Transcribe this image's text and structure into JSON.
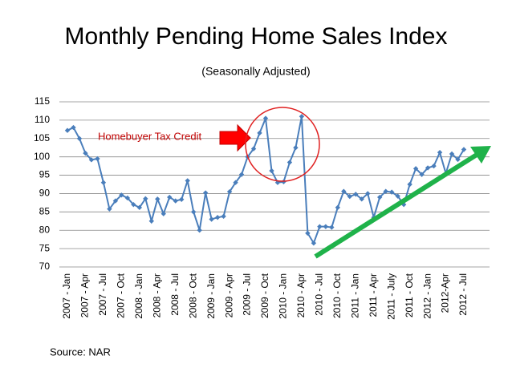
{
  "chart_data": {
    "type": "line",
    "title": "Monthly Pending Home Sales Index",
    "subtitle": "(Seasonally Adjusted)",
    "annotations": [
      "Homebuyer Tax Credit"
    ],
    "source": "Source: NAR",
    "categories": [
      "2007 - Jan",
      null,
      null,
      "2007 - Apr",
      null,
      null,
      "2007 - Jul",
      null,
      null,
      "2007 - Oct",
      null,
      null,
      "2008 - Jan",
      null,
      null,
      "2008 - Apr",
      null,
      null,
      "2008 - Jul",
      null,
      null,
      "2008 - Oct",
      null,
      null,
      "2009 - Jan",
      null,
      null,
      "2009 - Apr",
      null,
      null,
      "2009 - Jul",
      null,
      null,
      "2009 - Oct",
      null,
      null,
      "2010 - Jan",
      null,
      null,
      "2010 - Apr",
      null,
      null,
      "2010 - Jul",
      null,
      null,
      "2010 - Oct",
      null,
      null,
      "2011 - Jan",
      null,
      null,
      "2011 - Apr",
      null,
      null,
      "2011 - July",
      null,
      null,
      "2011 - Oct",
      null,
      null,
      "2012 - Jan",
      null,
      null,
      "2012-Apr",
      null,
      null,
      "2012 - Jul"
    ],
    "series": [
      {
        "name": "Pending Home Sales Index",
        "color": "#4a7ebb",
        "values": [
          107.2,
          108,
          105,
          101,
          99.2,
          99.5,
          93,
          85.8,
          88,
          89.6,
          88.8,
          87,
          86.2,
          88.6,
          82.5,
          88.5,
          84.5,
          89,
          88,
          88.4,
          93.5,
          85,
          80,
          90.2,
          83,
          83.5,
          83.8,
          90.5,
          93,
          95.2,
          100,
          102.2,
          106.5,
          110.5,
          96.2,
          93,
          93.2,
          98.5,
          102.5,
          111,
          79.2,
          76.5,
          81,
          81,
          80.8,
          86.2,
          90.6,
          89.2,
          89.8,
          88.5,
          90,
          83.5,
          89,
          90.6,
          90.4,
          89.3,
          87,
          92.5,
          96.8,
          95.2,
          97,
          97.5,
          101.2,
          95.5,
          100.8,
          99.3,
          102
        ]
      }
    ],
    "ylim": [
      70,
      115
    ],
    "yticks": [
      70,
      75,
      80,
      85,
      90,
      95,
      100,
      105,
      110,
      115
    ],
    "grid": true
  }
}
